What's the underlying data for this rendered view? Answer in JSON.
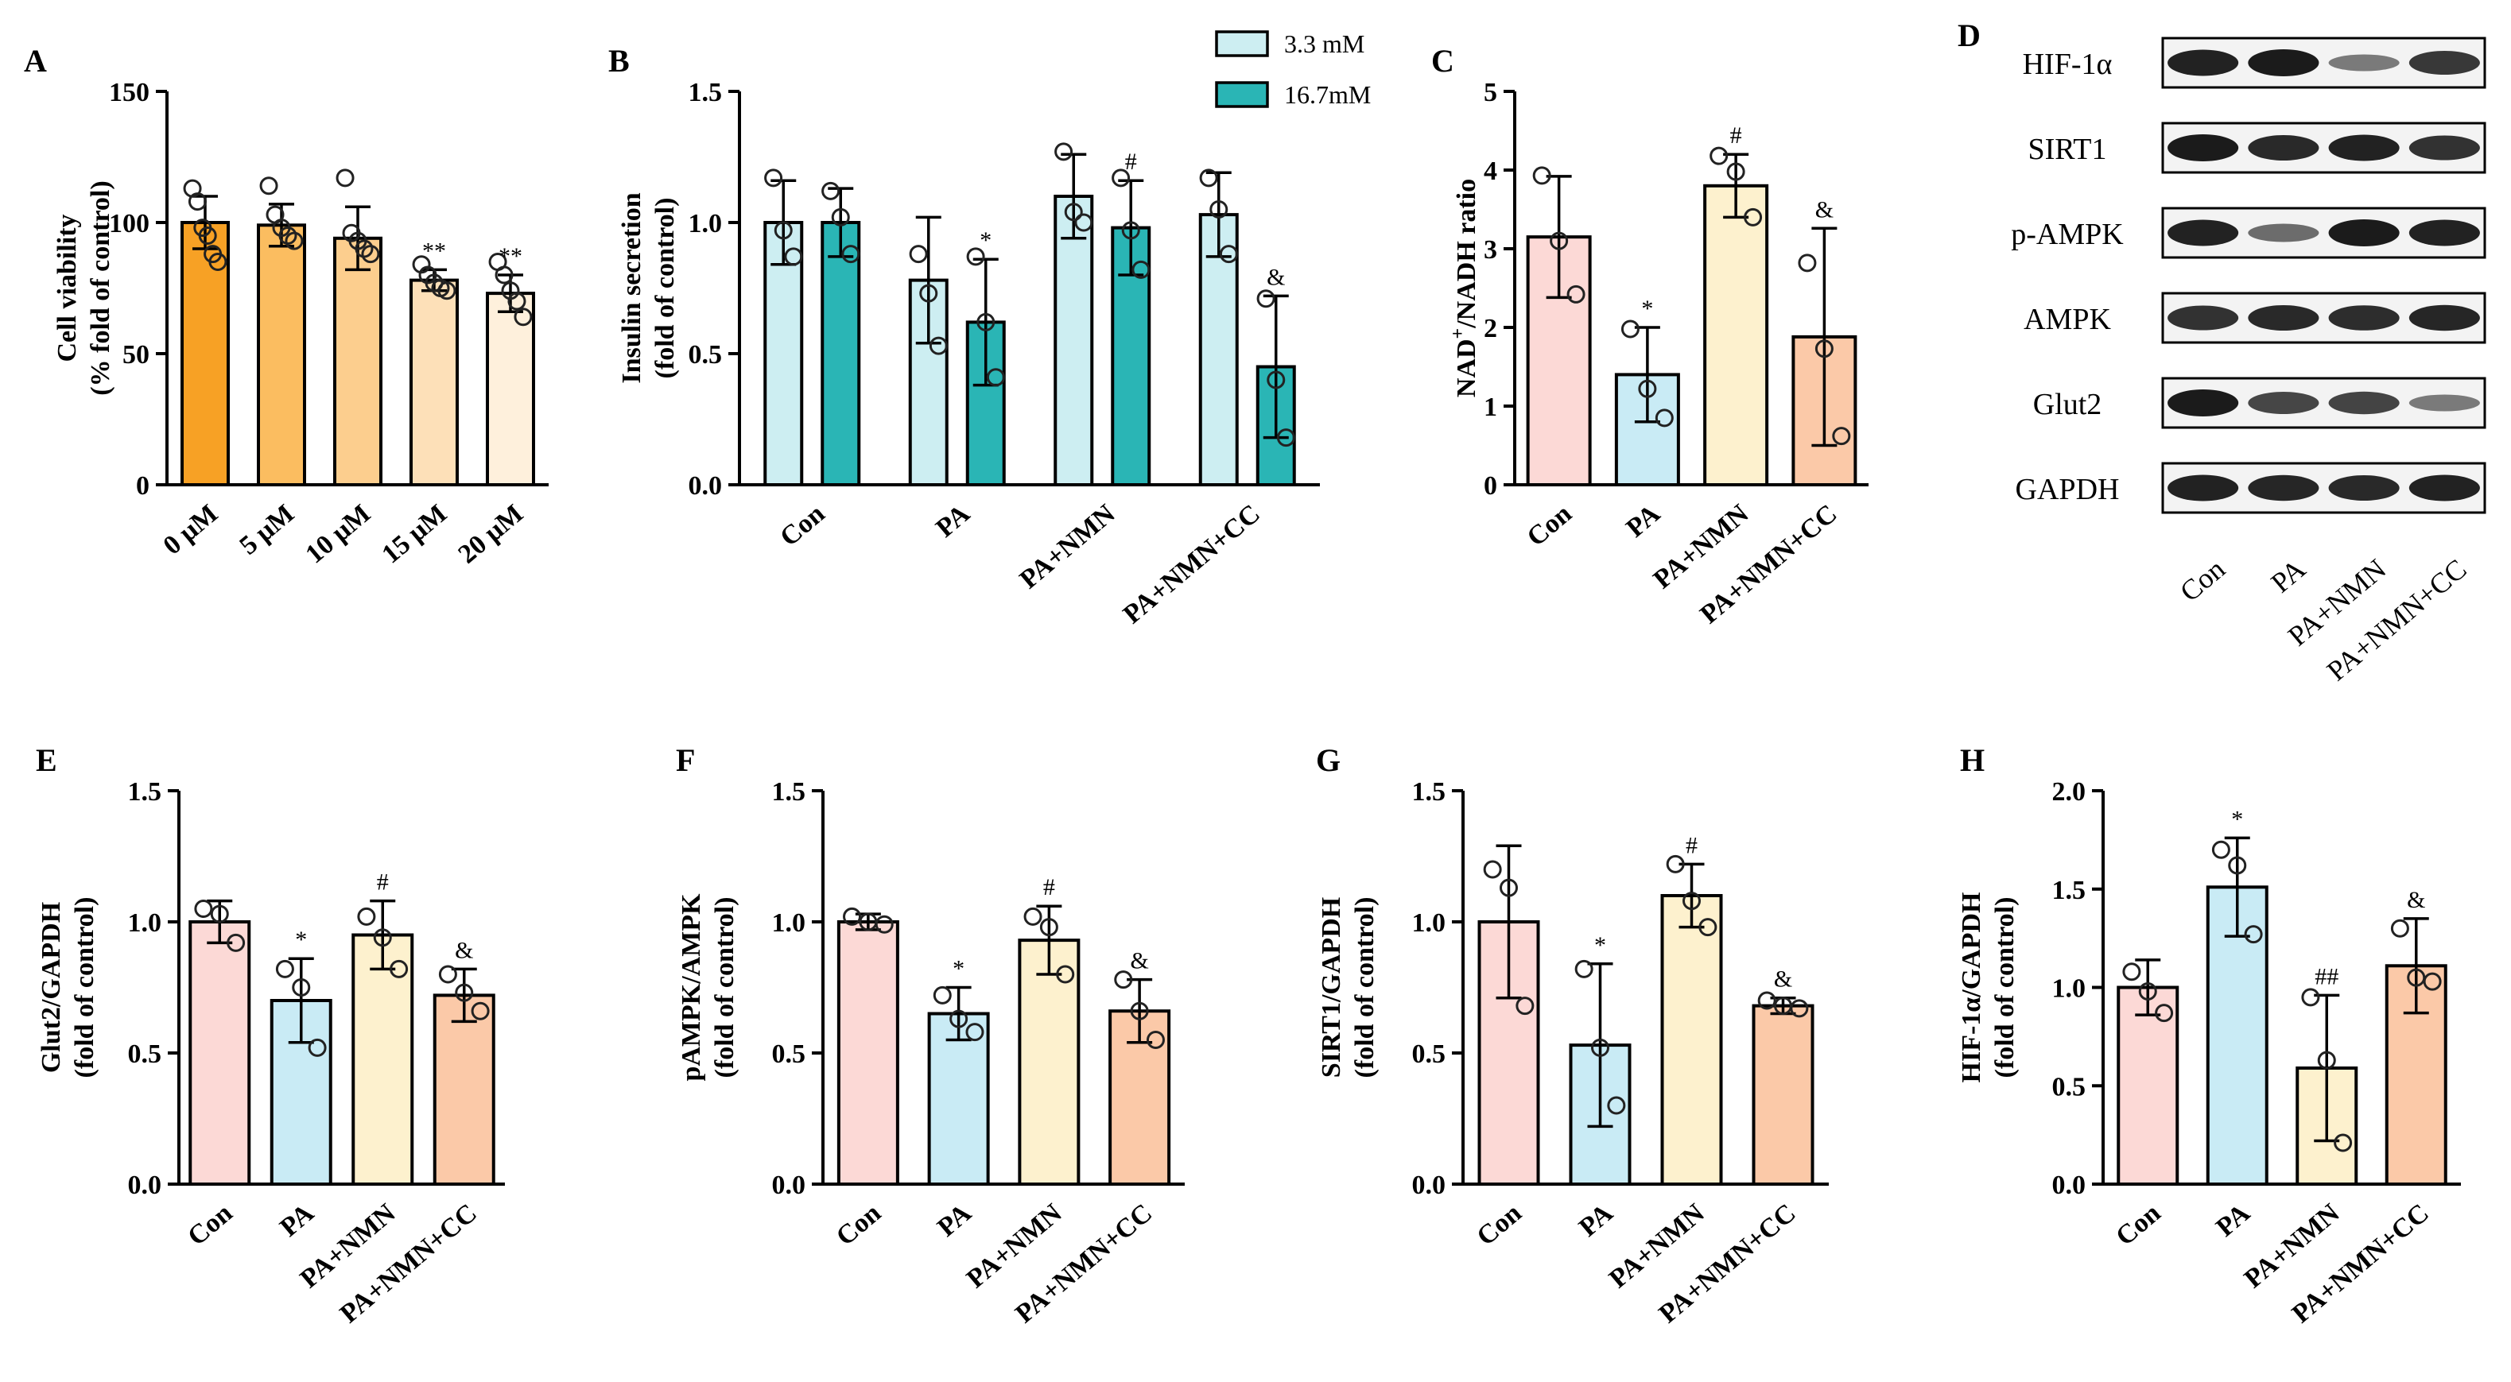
{
  "chart_data": [
    {
      "panel": "A",
      "type": "bar",
      "ylabel": [
        "Cell viability",
        "(% fold of control)"
      ],
      "ylim": [
        0,
        150
      ],
      "yticks": [
        0,
        50,
        100,
        150
      ],
      "categories": [
        "0 μM",
        "5 μM",
        "10 μM",
        "15 μM",
        "20 μM"
      ],
      "values": [
        100,
        99,
        94,
        78,
        73
      ],
      "errors": [
        10,
        8,
        12,
        4,
        7
      ],
      "points": [
        [
          113,
          108,
          98,
          95,
          88,
          85
        ],
        [
          114,
          103,
          98,
          95,
          93
        ],
        [
          117,
          96,
          93,
          90,
          88
        ],
        [
          84,
          80,
          77,
          75,
          74
        ],
        [
          85,
          80,
          74,
          70,
          64
        ]
      ],
      "colors": [
        "#f7a125",
        "#fbbd60",
        "#fcce8e",
        "#fde0b8",
        "#fef0dc"
      ],
      "annotations": [
        "",
        "",
        "",
        "**",
        "**"
      ]
    },
    {
      "panel": "B",
      "type": "bar",
      "ylabel": [
        "Insulin secretion",
        "(fold of control)"
      ],
      "ylim": [
        0,
        1.5
      ],
      "yticks": [
        "0.0",
        "0.5",
        "1.0",
        "1.5"
      ],
      "categories": [
        "Con",
        "PA",
        "PA+NMN",
        "PA+NMN+CC"
      ],
      "series": [
        {
          "name": "3.3 mM",
          "color": "#cdeef2",
          "values": [
            1.0,
            0.78,
            1.1,
            1.03
          ],
          "errors": [
            0.16,
            0.24,
            0.16,
            0.16
          ],
          "points": [
            [
              1.17,
              0.97,
              0.87
            ],
            [
              0.88,
              0.73,
              0.53
            ],
            [
              1.27,
              1.04,
              1.0
            ],
            [
              1.17,
              1.05,
              0.88
            ]
          ],
          "annotations": [
            "",
            "",
            "",
            ""
          ]
        },
        {
          "name": "16.7mM",
          "color": "#2ab5b5",
          "values": [
            1.0,
            0.62,
            0.98,
            0.45
          ],
          "errors": [
            0.13,
            0.24,
            0.18,
            0.27
          ],
          "points": [
            [
              1.12,
              1.02,
              0.88
            ],
            [
              0.87,
              0.62,
              0.41
            ],
            [
              1.17,
              0.97,
              0.82
            ],
            [
              0.71,
              0.4,
              0.18
            ]
          ],
          "annotations": [
            "",
            "*",
            "#",
            "&"
          ]
        }
      ]
    },
    {
      "panel": "C",
      "type": "bar",
      "ylabel_main": "NAD",
      "ylabel_sup": "+",
      "ylabel_rest": "/NADH ratio",
      "ylim": [
        0,
        5
      ],
      "yticks": [
        0,
        1,
        2,
        3,
        4,
        5
      ],
      "categories": [
        "Con",
        "PA",
        "PA+NMN",
        "PA+NMN+CC"
      ],
      "values": [
        3.15,
        1.4,
        3.8,
        1.88
      ],
      "errors": [
        0.77,
        0.6,
        0.4,
        1.38
      ],
      "points": [
        [
          3.93,
          3.1,
          2.42
        ],
        [
          1.98,
          1.22,
          0.85
        ],
        [
          4.18,
          3.98,
          3.4
        ],
        [
          2.82,
          1.73,
          0.62
        ]
      ],
      "colors": [
        "#fcd9d6",
        "#c9ebf5",
        "#fdf1ce",
        "#fbc9a8"
      ],
      "annotations": [
        "",
        "*",
        "#",
        "&"
      ]
    },
    {
      "panel": "E",
      "type": "bar",
      "ylabel": [
        "Glut2/GAPDH",
        "(fold of control)"
      ],
      "ylim": [
        0,
        1.5
      ],
      "yticks": [
        "0.0",
        "0.5",
        "1.0",
        "1.5"
      ],
      "categories": [
        "Con",
        "PA",
        "PA+NMN",
        "PA+NMN+CC"
      ],
      "values": [
        1.0,
        0.7,
        0.95,
        0.72
      ],
      "errors": [
        0.08,
        0.16,
        0.13,
        0.1
      ],
      "points": [
        [
          1.05,
          1.03,
          0.92
        ],
        [
          0.82,
          0.75,
          0.52
        ],
        [
          1.02,
          0.94,
          0.82
        ],
        [
          0.8,
          0.73,
          0.66
        ]
      ],
      "colors": [
        "#fcd9d6",
        "#c9ebf5",
        "#fdf1ce",
        "#fbc9a8"
      ],
      "annotations": [
        "",
        "*",
        "#",
        "&"
      ]
    },
    {
      "panel": "F",
      "type": "bar",
      "ylabel": [
        "pAMPK/AMPK",
        "(fold of control)"
      ],
      "ylim": [
        0,
        1.5
      ],
      "yticks": [
        "0.0",
        "0.5",
        "1.0",
        "1.5"
      ],
      "categories": [
        "Con",
        "PA",
        "PA+NMN",
        "PA+NMN+CC"
      ],
      "values": [
        1.0,
        0.65,
        0.93,
        0.66
      ],
      "errors": [
        0.03,
        0.1,
        0.13,
        0.12
      ],
      "points": [
        [
          1.02,
          1.0,
          0.99
        ],
        [
          0.72,
          0.63,
          0.58
        ],
        [
          1.02,
          0.98,
          0.8
        ],
        [
          0.78,
          0.66,
          0.55
        ]
      ],
      "colors": [
        "#fcd9d6",
        "#c9ebf5",
        "#fdf1ce",
        "#fbc9a8"
      ],
      "annotations": [
        "",
        "*",
        "#",
        "&"
      ]
    },
    {
      "panel": "G",
      "type": "bar",
      "ylabel": [
        "SIRT1/GAPDH",
        "(fold of control)"
      ],
      "ylim": [
        0,
        1.5
      ],
      "yticks": [
        "0.0",
        "0.5",
        "1.0",
        "1.5"
      ],
      "categories": [
        "Con",
        "PA",
        "PA+NMN",
        "PA+NMN+CC"
      ],
      "values": [
        1.0,
        0.53,
        1.1,
        0.68
      ],
      "errors": [
        0.29,
        0.31,
        0.12,
        0.03
      ],
      "points": [
        [
          1.2,
          1.13,
          0.68
        ],
        [
          0.82,
          0.52,
          0.3
        ],
        [
          1.22,
          1.08,
          0.98
        ],
        [
          0.7,
          0.68,
          0.67
        ]
      ],
      "colors": [
        "#fcd9d6",
        "#c9ebf5",
        "#fdf1ce",
        "#fbc9a8"
      ],
      "annotations": [
        "",
        "*",
        "#",
        "&"
      ]
    },
    {
      "panel": "H",
      "type": "bar",
      "ylabel": [
        "HIF-1α/GAPDH",
        "(fold of control)"
      ],
      "ylim": [
        0,
        2.0
      ],
      "yticks": [
        "0.0",
        "0.5",
        "1.0",
        "1.5",
        "2.0"
      ],
      "categories": [
        "Con",
        "PA",
        "PA+NMN",
        "PA+NMN+CC"
      ],
      "values": [
        1.0,
        1.51,
        0.59,
        1.11
      ],
      "errors": [
        0.14,
        0.25,
        0.37,
        0.24
      ],
      "points": [
        [
          1.08,
          0.98,
          0.87
        ],
        [
          1.7,
          1.62,
          1.27
        ],
        [
          0.95,
          0.63,
          0.21
        ],
        [
          1.3,
          1.05,
          1.03
        ]
      ],
      "colors": [
        "#fcd9d6",
        "#c9ebf5",
        "#fdf1ce",
        "#fbc9a8"
      ],
      "annotations": [
        "",
        "*",
        "##",
        "&"
      ]
    }
  ],
  "western_blot": {
    "panel": "D",
    "proteins": [
      "HIF-1α",
      "SIRT1",
      "p-AMPK",
      "AMPK",
      "Glut2",
      "GAPDH"
    ],
    "lanes": [
      "Con",
      "PA",
      "PA+NMN",
      "PA+NMN+CC"
    ],
    "intensities": [
      [
        0.95,
        1.0,
        0.35,
        0.8
      ],
      [
        1.0,
        0.9,
        0.95,
        0.85
      ],
      [
        0.95,
        0.45,
        1.0,
        0.95
      ],
      [
        0.85,
        0.9,
        0.88,
        0.92
      ],
      [
        1.0,
        0.7,
        0.72,
        0.35
      ],
      [
        0.95,
        0.92,
        0.9,
        0.95
      ]
    ]
  }
}
